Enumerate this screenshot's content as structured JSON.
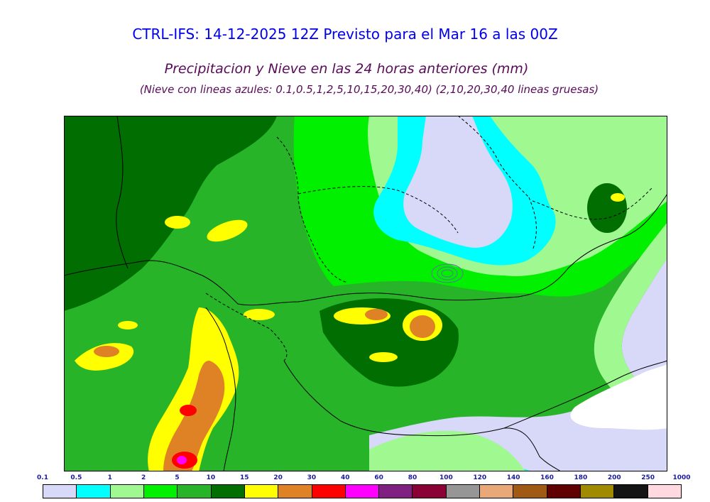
{
  "header": {
    "title": "CTRL-IFS: 14-12-2025 12Z Previsto para el Mar 16 a las 00Z",
    "subtitle": "Precipitacion y Nieve en las 24 horas anteriores (mm)",
    "note": "(Nieve con lineas azules: 0.1,0.5,1,2,5,10,15,20,30,40)  (2,10,20,30,40 lineas gruesas)"
  },
  "legend": {
    "labels": [
      "0.1",
      "0.5",
      "1",
      "2",
      "5",
      "10",
      "15",
      "20",
      "30",
      "40",
      "60",
      "80",
      "100",
      "120",
      "140",
      "160",
      "180",
      "200",
      "250",
      "1000"
    ],
    "colors": [
      "#d8d8f8",
      "#00ffff",
      "#a0f890",
      "#00f000",
      "#28b428",
      "#006e00",
      "#ffff00",
      "#df8226",
      "#ff0000",
      "#ff00ff",
      "#802080",
      "#8b0035",
      "#969696",
      "#e8a878",
      "#a05a14",
      "#600000",
      "#a08a00",
      "#141414",
      "#ffd8e0"
    ]
  },
  "map": {
    "palette": {
      "light_lavender": "#d8d8f8",
      "cyan": "#00ffff",
      "light_green": "#a0f890",
      "bright_green": "#00f000",
      "green": "#28b428",
      "dark_green": "#006e00",
      "yellow": "#ffff00",
      "orange": "#df8226",
      "red": "#ff0000",
      "magenta": "#ff00ff"
    }
  }
}
